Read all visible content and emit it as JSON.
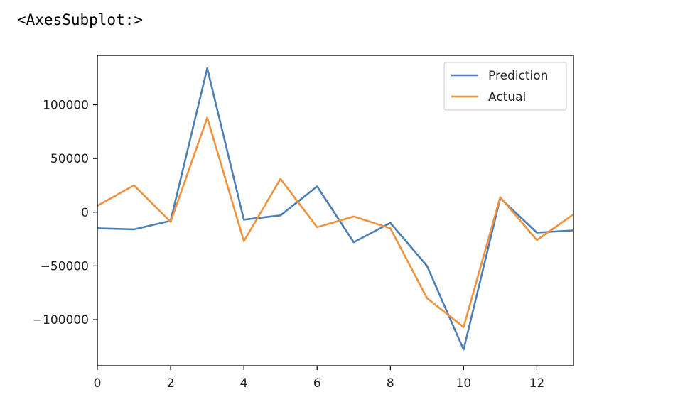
{
  "output_text": "<AxesSubplot:>",
  "chart_data": {
    "type": "line",
    "x": [
      0,
      1,
      2,
      3,
      4,
      5,
      6,
      7,
      8,
      9,
      10,
      11,
      12,
      13
    ],
    "series": [
      {
        "name": "Prediction",
        "color": "#4c7fb5",
        "values": [
          -15000,
          -16000,
          -8000,
          134000,
          -7000,
          -3000,
          24000,
          -28000,
          -10000,
          -50000,
          -128000,
          13000,
          -19000,
          -17000
        ]
      },
      {
        "name": "Actual",
        "color": "#f0913e",
        "values": [
          6000,
          25000,
          -9000,
          88000,
          -27000,
          31000,
          -14000,
          -4000,
          -15000,
          -80000,
          -107000,
          14000,
          -26000,
          -2000
        ]
      }
    ],
    "xlim": [
      0,
      13
    ],
    "ylim": [
      -143000,
      146000
    ],
    "xticks": [
      0,
      2,
      4,
      6,
      8,
      10,
      12
    ],
    "xtick_labels": [
      "0",
      "2",
      "4",
      "6",
      "8",
      "10",
      "12"
    ],
    "yticks": [
      100000,
      50000,
      0,
      -50000,
      -100000
    ],
    "ytick_labels": [
      "100000",
      "50000",
      "0",
      "−50000",
      "−100000"
    ],
    "legend_position": "top-right",
    "grid": false,
    "title": "",
    "xlabel": "",
    "ylabel": ""
  }
}
